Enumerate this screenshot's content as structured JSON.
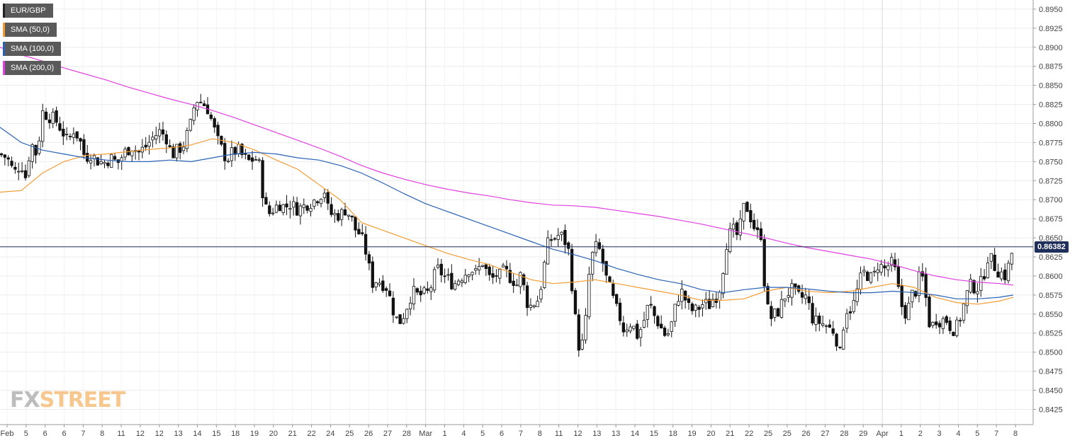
{
  "legend": [
    {
      "label": "EUR/GBP",
      "color": "#222222"
    },
    {
      "label": "SMA (50,0)",
      "color": "#f39c34"
    },
    {
      "label": "SMA (100,0)",
      "color": "#2a62b5"
    },
    {
      "label": "SMA (200,0)",
      "color": "#e040e0"
    }
  ],
  "watermark": {
    "fx": "FX",
    "street": "STREET"
  },
  "current_price": "0.86382",
  "chart_data": {
    "type": "candlestick",
    "symbol": "EUR/GBP",
    "ylim": [
      0.8405,
      0.8962
    ],
    "yticks": [
      "0.8425",
      "0.8450",
      "0.8475",
      "0.8500",
      "0.8525",
      "0.8550",
      "0.8575",
      "0.8600",
      "0.8625",
      "0.8650",
      "0.8675",
      "0.8700",
      "0.8725",
      "0.8750",
      "0.8775",
      "0.8800",
      "0.8825",
      "0.8850",
      "0.8875",
      "0.8900",
      "0.8925",
      "0.8950"
    ],
    "xticks": [
      "Feb",
      "5",
      "6",
      "6",
      "7",
      "8",
      "11",
      "12",
      "12",
      "13",
      "14",
      "15",
      "18",
      "19",
      "20",
      "21",
      "22",
      "24",
      "25",
      "26",
      "27",
      "28",
      "Mar",
      "1",
      "4",
      "5",
      "6",
      "7",
      "8",
      "11",
      "12",
      "13",
      "13",
      "14",
      "15",
      "18",
      "19",
      "20",
      "21",
      "22",
      "25",
      "25",
      "26",
      "27",
      "28",
      "29",
      "Apr",
      "1",
      "2",
      "3",
      "4",
      "5",
      "7",
      "8"
    ],
    "major_gridlines": [
      "Mar",
      "Apr"
    ],
    "current_price": 0.86382,
    "anchors": [
      [
        0,
        0.876
      ],
      [
        10,
        0.8755
      ],
      [
        20,
        0.8735
      ],
      [
        30,
        0.8748
      ],
      [
        36,
        0.873
      ],
      [
        44,
        0.8775
      ],
      [
        52,
        0.8758
      ],
      [
        60,
        0.8815
      ],
      [
        68,
        0.881
      ],
      [
        78,
        0.8805
      ],
      [
        88,
        0.879
      ],
      [
        96,
        0.8775
      ],
      [
        104,
        0.8792
      ],
      [
        112,
        0.878
      ],
      [
        120,
        0.8755
      ],
      [
        128,
        0.876
      ],
      [
        136,
        0.8752
      ],
      [
        146,
        0.8748
      ],
      [
        156,
        0.8755
      ],
      [
        166,
        0.8748
      ],
      [
        176,
        0.8762
      ],
      [
        186,
        0.877
      ],
      [
        196,
        0.8762
      ],
      [
        206,
        0.877
      ],
      [
        216,
        0.8782
      ],
      [
        226,
        0.879
      ],
      [
        236,
        0.878
      ],
      [
        242,
        0.8758
      ],
      [
        250,
        0.8765
      ],
      [
        258,
        0.877
      ],
      [
        268,
        0.8795
      ],
      [
        276,
        0.8832
      ],
      [
        284,
        0.8828
      ],
      [
        292,
        0.8822
      ],
      [
        300,
        0.88
      ],
      [
        306,
        0.878
      ],
      [
        312,
        0.8768
      ],
      [
        320,
        0.8752
      ],
      [
        328,
        0.8762
      ],
      [
        336,
        0.8765
      ],
      [
        344,
        0.8755
      ],
      [
        352,
        0.875
      ],
      [
        360,
        0.8755
      ],
      [
        366,
        0.8745
      ],
      [
        372,
        0.87
      ],
      [
        378,
        0.868
      ],
      [
        386,
        0.8688
      ],
      [
        394,
        0.8695
      ],
      [
        402,
        0.869
      ],
      [
        410,
        0.8695
      ],
      [
        418,
        0.8688
      ],
      [
        426,
        0.869
      ],
      [
        434,
        0.8695
      ],
      [
        442,
        0.8698
      ],
      [
        450,
        0.8705
      ],
      [
        458,
        0.8712
      ],
      [
        464,
        0.8682
      ],
      [
        472,
        0.868
      ],
      [
        480,
        0.868
      ],
      [
        488,
        0.8688
      ],
      [
        496,
        0.8675
      ],
      [
        502,
        0.866
      ],
      [
        508,
        0.8655
      ],
      [
        514,
        0.864
      ],
      [
        518,
        0.8625
      ],
      [
        522,
        0.8605
      ],
      [
        526,
        0.859
      ],
      [
        532,
        0.8595
      ],
      [
        540,
        0.859
      ],
      [
        546,
        0.8585
      ],
      [
        552,
        0.8565
      ],
      [
        558,
        0.8545
      ],
      [
        564,
        0.854
      ],
      [
        570,
        0.855
      ],
      [
        576,
        0.8565
      ],
      [
        582,
        0.858
      ],
      [
        588,
        0.8575
      ],
      [
        596,
        0.8575
      ],
      [
        604,
        0.8578
      ],
      [
        610,
        0.859
      ],
      [
        616,
        0.861
      ],
      [
        622,
        0.8605
      ],
      [
        628,
        0.8598
      ],
      [
        634,
        0.8595
      ],
      [
        640,
        0.8588
      ],
      [
        646,
        0.8595
      ],
      [
        652,
        0.86
      ],
      [
        658,
        0.8605
      ],
      [
        664,
        0.8612
      ],
      [
        670,
        0.8602
      ],
      [
        676,
        0.861
      ],
      [
        682,
        0.862
      ],
      [
        688,
        0.86
      ],
      [
        694,
        0.8595
      ],
      [
        700,
        0.8602
      ],
      [
        706,
        0.86
      ],
      [
        712,
        0.8608
      ],
      [
        718,
        0.86
      ],
      [
        724,
        0.8595
      ],
      [
        730,
        0.8588
      ],
      [
        736,
        0.8605
      ],
      [
        742,
        0.8568
      ],
      [
        748,
        0.856
      ],
      [
        754,
        0.8565
      ],
      [
        760,
        0.857
      ],
      [
        766,
        0.86
      ],
      [
        772,
        0.864
      ],
      [
        778,
        0.8648
      ],
      [
        784,
        0.865
      ],
      [
        790,
        0.8655
      ],
      [
        796,
        0.8648
      ],
      [
        802,
        0.8635
      ],
      [
        806,
        0.86
      ],
      [
        810,
        0.856
      ],
      [
        816,
        0.851
      ],
      [
        820,
        0.8505
      ],
      [
        824,
        0.852
      ],
      [
        828,
        0.8555
      ],
      [
        832,
        0.861
      ],
      [
        838,
        0.8635
      ],
      [
        844,
        0.864
      ],
      [
        850,
        0.862
      ],
      [
        856,
        0.8595
      ],
      [
        862,
        0.858
      ],
      [
        868,
        0.856
      ],
      [
        874,
        0.8548
      ],
      [
        880,
        0.853
      ],
      [
        886,
        0.8535
      ],
      [
        892,
        0.854
      ],
      [
        898,
        0.852
      ],
      [
        904,
        0.853
      ],
      [
        910,
        0.8545
      ],
      [
        916,
        0.8565
      ],
      [
        922,
        0.855
      ],
      [
        928,
        0.854
      ],
      [
        934,
        0.853
      ],
      [
        940,
        0.852
      ],
      [
        946,
        0.853
      ],
      [
        952,
        0.8555
      ],
      [
        958,
        0.8575
      ],
      [
        964,
        0.858
      ],
      [
        970,
        0.856
      ],
      [
        976,
        0.8555
      ],
      [
        982,
        0.8555
      ],
      [
        988,
        0.856
      ],
      [
        994,
        0.8565
      ],
      [
        1000,
        0.856
      ],
      [
        1006,
        0.857
      ],
      [
        1012,
        0.8575
      ],
      [
        1018,
        0.859
      ],
      [
        1024,
        0.864
      ],
      [
        1030,
        0.8655
      ],
      [
        1036,
        0.866
      ],
      [
        1042,
        0.865
      ],
      [
        1048,
        0.8685
      ],
      [
        1052,
        0.8695
      ],
      [
        1058,
        0.868
      ],
      [
        1064,
        0.8665
      ],
      [
        1068,
        0.8655
      ],
      [
        1074,
        0.8655
      ],
      [
        1078,
        0.86
      ],
      [
        1082,
        0.856
      ],
      [
        1088,
        0.8545
      ],
      [
        1094,
        0.855
      ],
      [
        1100,
        0.8555
      ],
      [
        1106,
        0.8572
      ],
      [
        1112,
        0.8578
      ],
      [
        1118,
        0.8582
      ],
      [
        1124,
        0.8575
      ],
      [
        1130,
        0.857
      ],
      [
        1136,
        0.8575
      ],
      [
        1142,
        0.856
      ],
      [
        1148,
        0.854
      ],
      [
        1154,
        0.854
      ],
      [
        1160,
        0.8538
      ],
      [
        1166,
        0.8535
      ],
      [
        1172,
        0.853
      ],
      [
        1178,
        0.8528
      ],
      [
        1182,
        0.851
      ],
      [
        1186,
        0.8495
      ],
      [
        1190,
        0.8535
      ],
      [
        1196,
        0.856
      ],
      [
        1202,
        0.8555
      ],
      [
        1208,
        0.8575
      ],
      [
        1214,
        0.8595
      ],
      [
        1220,
        0.8605
      ],
      [
        1226,
        0.86
      ],
      [
        1232,
        0.8595
      ],
      [
        1238,
        0.8615
      ],
      [
        1244,
        0.8612
      ],
      [
        1250,
        0.8608
      ],
      [
        1256,
        0.8618
      ],
      [
        1262,
        0.8612
      ],
      [
        1268,
        0.858
      ],
      [
        1274,
        0.8555
      ],
      [
        1280,
        0.855
      ],
      [
        1286,
        0.8575
      ],
      [
        1292,
        0.858
      ],
      [
        1298,
        0.86
      ],
      [
        1304,
        0.8595
      ],
      [
        1310,
        0.854
      ],
      [
        1316,
        0.8535
      ],
      [
        1322,
        0.8545
      ],
      [
        1328,
        0.854
      ],
      [
        1334,
        0.8545
      ],
      [
        1340,
        0.8535
      ],
      [
        1346,
        0.853
      ],
      [
        1352,
        0.8535
      ],
      [
        1358,
        0.8555
      ],
      [
        1364,
        0.8575
      ],
      [
        1370,
        0.8588
      ],
      [
        1376,
        0.8585
      ],
      [
        1382,
        0.8585
      ],
      [
        1388,
        0.86
      ],
      [
        1394,
        0.8625
      ],
      [
        1400,
        0.862
      ],
      [
        1406,
        0.8608
      ],
      [
        1412,
        0.8605
      ],
      [
        1418,
        0.86
      ],
      [
        1424,
        0.8615
      ],
      [
        1430,
        0.8638
      ]
    ],
    "series": [
      {
        "name": "SMA (50,0)",
        "color": "#f39c34",
        "x": [
          0,
          30,
          60,
          90,
          120,
          150,
          180,
          210,
          240,
          270,
          300,
          330,
          360,
          390,
          420,
          450,
          480,
          510,
          540,
          570,
          600,
          630,
          660,
          690,
          720,
          750,
          780,
          810,
          840,
          870,
          900,
          930,
          960,
          990,
          1020,
          1050,
          1080,
          1110,
          1140,
          1170,
          1200,
          1230,
          1260,
          1290,
          1320,
          1350,
          1380,
          1410,
          1430
        ],
        "y": [
          0.871,
          0.8712,
          0.8735,
          0.875,
          0.8758,
          0.876,
          0.8763,
          0.8766,
          0.8768,
          0.8772,
          0.878,
          0.8775,
          0.8765,
          0.8752,
          0.874,
          0.872,
          0.87,
          0.867,
          0.866,
          0.865,
          0.864,
          0.863,
          0.8622,
          0.8615,
          0.8605,
          0.8595,
          0.859,
          0.8592,
          0.8595,
          0.859,
          0.8585,
          0.858,
          0.8575,
          0.8568,
          0.8568,
          0.857,
          0.858,
          0.8585,
          0.858,
          0.8578,
          0.858,
          0.8585,
          0.859,
          0.8585,
          0.8572,
          0.8565,
          0.8563,
          0.8567,
          0.8572
        ]
      },
      {
        "name": "SMA (100,0)",
        "color": "#2a62b5",
        "x": [
          0,
          30,
          60,
          90,
          120,
          150,
          180,
          210,
          240,
          270,
          300,
          330,
          360,
          390,
          420,
          450,
          480,
          510,
          540,
          570,
          600,
          630,
          660,
          690,
          720,
          750,
          780,
          810,
          840,
          870,
          900,
          930,
          960,
          990,
          1020,
          1050,
          1080,
          1110,
          1140,
          1170,
          1200,
          1230,
          1260,
          1290,
          1320,
          1350,
          1380,
          1410,
          1430
        ],
        "y": [
          0.8795,
          0.8775,
          0.8765,
          0.876,
          0.8755,
          0.8752,
          0.875,
          0.875,
          0.8752,
          0.875,
          0.8755,
          0.876,
          0.8762,
          0.876,
          0.8755,
          0.8752,
          0.8745,
          0.8735,
          0.8722,
          0.8708,
          0.8695,
          0.8685,
          0.8675,
          0.8665,
          0.8655,
          0.8645,
          0.8635,
          0.8628,
          0.862,
          0.861,
          0.8602,
          0.8595,
          0.859,
          0.8582,
          0.8578,
          0.8582,
          0.8585,
          0.8585,
          0.8583,
          0.858,
          0.8578,
          0.8578,
          0.858,
          0.8578,
          0.8575,
          0.857,
          0.857,
          0.8572,
          0.8575
        ]
      },
      {
        "name": "SMA (200,0)",
        "color": "#e040e0",
        "x": [
          0,
          30,
          60,
          90,
          120,
          150,
          180,
          210,
          240,
          270,
          300,
          330,
          360,
          390,
          420,
          450,
          480,
          510,
          540,
          570,
          600,
          630,
          660,
          690,
          720,
          750,
          780,
          810,
          840,
          870,
          900,
          930,
          960,
          990,
          1020,
          1050,
          1080,
          1110,
          1140,
          1170,
          1200,
          1230,
          1260,
          1290,
          1320,
          1350,
          1380,
          1410,
          1430
        ],
        "y": [
          0.89,
          0.889,
          0.8882,
          0.8873,
          0.8865,
          0.8857,
          0.8848,
          0.884,
          0.8832,
          0.8825,
          0.8817,
          0.8808,
          0.8798,
          0.8788,
          0.8778,
          0.8768,
          0.8757,
          0.8745,
          0.8735,
          0.8727,
          0.872,
          0.8714,
          0.8709,
          0.8705,
          0.87,
          0.8696,
          0.8693,
          0.8692,
          0.869,
          0.8686,
          0.8682,
          0.8678,
          0.8673,
          0.8668,
          0.8662,
          0.8656,
          0.865,
          0.8643,
          0.8637,
          0.8632,
          0.8627,
          0.8622,
          0.8615,
          0.8607,
          0.86,
          0.8595,
          0.8592,
          0.859,
          0.8588
        ]
      }
    ]
  }
}
